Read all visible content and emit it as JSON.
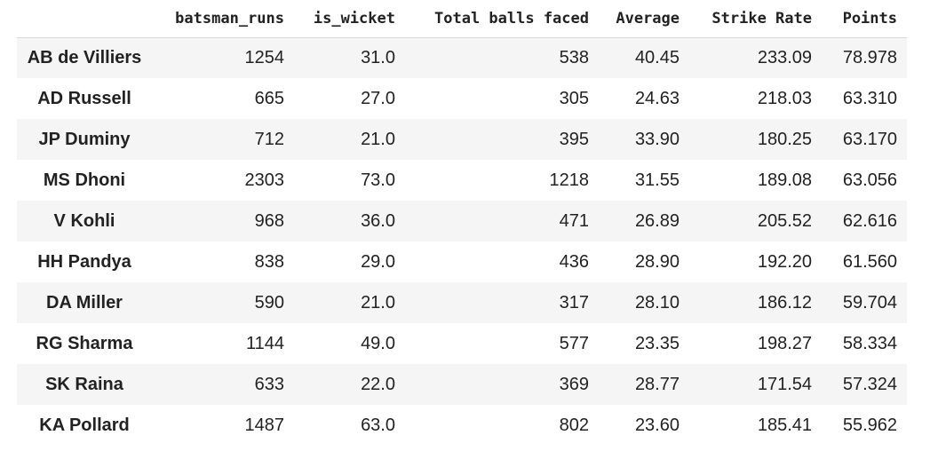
{
  "dataframe": {
    "index_header": "",
    "columns": [
      "batsman_runs",
      "is_wicket",
      "Total balls faced",
      "Average",
      "Strike Rate",
      "Points"
    ],
    "rows": [
      {
        "name": "AB de Villiers",
        "values": [
          "1254",
          "31.0",
          "538",
          "40.45",
          "233.09",
          "78.978"
        ]
      },
      {
        "name": "AD Russell",
        "values": [
          "665",
          "27.0",
          "305",
          "24.63",
          "218.03",
          "63.310"
        ]
      },
      {
        "name": "JP Duminy",
        "values": [
          "712",
          "21.0",
          "395",
          "33.90",
          "180.25",
          "63.170"
        ]
      },
      {
        "name": "MS Dhoni",
        "values": [
          "2303",
          "73.0",
          "1218",
          "31.55",
          "189.08",
          "63.056"
        ]
      },
      {
        "name": "V Kohli",
        "values": [
          "968",
          "36.0",
          "471",
          "26.89",
          "205.52",
          "62.616"
        ]
      },
      {
        "name": "HH Pandya",
        "values": [
          "838",
          "29.0",
          "436",
          "28.90",
          "192.20",
          "61.560"
        ]
      },
      {
        "name": "DA Miller",
        "values": [
          "590",
          "21.0",
          "317",
          "28.10",
          "186.12",
          "59.704"
        ]
      },
      {
        "name": "RG Sharma",
        "values": [
          "1144",
          "49.0",
          "577",
          "23.35",
          "198.27",
          "58.334"
        ]
      },
      {
        "name": "SK Raina",
        "values": [
          "633",
          "22.0",
          "369",
          "28.77",
          "171.54",
          "57.324"
        ]
      },
      {
        "name": "KA Pollard",
        "values": [
          "1487",
          "63.0",
          "802",
          "23.60",
          "185.41",
          "55.962"
        ]
      }
    ]
  },
  "colors": {
    "striped_row": "#f5f5f5",
    "plain_row": "#ffffff",
    "header_rule": "#d9d9d9",
    "text": "#222222"
  }
}
